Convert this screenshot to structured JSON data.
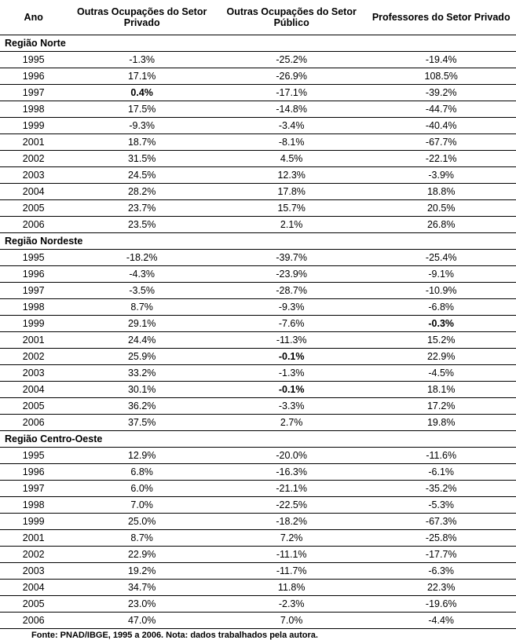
{
  "headers": {
    "ano": "Ano",
    "col1": "Outras Ocupações do Setor Privado",
    "col2": "Outras Ocupações do Setor Público",
    "col3": "Professores do Setor Privado"
  },
  "regions": [
    {
      "name": "Região Norte",
      "rows": [
        {
          "ano": "1995",
          "c1": "-1.3%",
          "c2": "-25.2%",
          "c3": "-19.4%"
        },
        {
          "ano": "1996",
          "c1": "17.1%",
          "c2": "-26.9%",
          "c3": "108.5%"
        },
        {
          "ano": "1997",
          "c1": "0.4%",
          "c1_bold": true,
          "c2": "-17.1%",
          "c3": "-39.2%"
        },
        {
          "ano": "1998",
          "c1": "17.5%",
          "c2": "-14.8%",
          "c3": "-44.7%"
        },
        {
          "ano": "1999",
          "c1": "-9.3%",
          "c2": "-3.4%",
          "c3": "-40.4%"
        },
        {
          "ano": "2001",
          "c1": "18.7%",
          "c2": "-8.1%",
          "c3": "-67.7%"
        },
        {
          "ano": "2002",
          "c1": "31.5%",
          "c2": "4.5%",
          "c3": "-22.1%"
        },
        {
          "ano": "2003",
          "c1": "24.5%",
          "c2": "12.3%",
          "c3": "-3.9%"
        },
        {
          "ano": "2004",
          "c1": "28.2%",
          "c2": "17.8%",
          "c3": "18.8%"
        },
        {
          "ano": "2005",
          "c1": "23.7%",
          "c2": "15.7%",
          "c3": "20.5%"
        },
        {
          "ano": "2006",
          "c1": "23.5%",
          "c2": "2.1%",
          "c3": "26.8%"
        }
      ]
    },
    {
      "name": "Região Nordeste",
      "rows": [
        {
          "ano": "1995",
          "c1": "-18.2%",
          "c2": "-39.7%",
          "c3": "-25.4%"
        },
        {
          "ano": "1996",
          "c1": "-4.3%",
          "c2": "-23.9%",
          "c3": "-9.1%"
        },
        {
          "ano": "1997",
          "c1": "-3.5%",
          "c2": "-28.7%",
          "c3": "-10.9%"
        },
        {
          "ano": "1998",
          "c1": "8.7%",
          "c2": "-9.3%",
          "c3": "-6.8%"
        },
        {
          "ano": "1999",
          "c1": "29.1%",
          "c2": "-7.6%",
          "c3": "-0.3%",
          "c3_bold": true
        },
        {
          "ano": "2001",
          "c1": "24.4%",
          "c2": "-11.3%",
          "c3": "15.2%"
        },
        {
          "ano": "2002",
          "c1": "25.9%",
          "c2": "-0.1%",
          "c2_bold": true,
          "c3": "22.9%"
        },
        {
          "ano": "2003",
          "c1": "33.2%",
          "c2": "-1.3%",
          "c3": "-4.5%"
        },
        {
          "ano": "2004",
          "c1": "30.1%",
          "c2": "-0.1%",
          "c2_bold": true,
          "c3": "18.1%"
        },
        {
          "ano": "2005",
          "c1": "36.2%",
          "c2": "-3.3%",
          "c3": "17.2%"
        },
        {
          "ano": "2006",
          "c1": "37.5%",
          "c2": "2.7%",
          "c3": "19.8%"
        }
      ]
    },
    {
      "name": "Região Centro-Oeste",
      "rows": [
        {
          "ano": "1995",
          "c1": "12.9%",
          "c2": "-20.0%",
          "c3": "-11.6%"
        },
        {
          "ano": "1996",
          "c1": "6.8%",
          "c2": "-16.3%",
          "c3": "-6.1%"
        },
        {
          "ano": "1997",
          "c1": "6.0%",
          "c2": "-21.1%",
          "c3": "-35.2%"
        },
        {
          "ano": "1998",
          "c1": "7.0%",
          "c2": "-22.5%",
          "c3": "-5.3%"
        },
        {
          "ano": "1999",
          "c1": "25.0%",
          "c2": "-18.2%",
          "c3": "-67.3%"
        },
        {
          "ano": "2001",
          "c1": "8.7%",
          "c2": "7.2%",
          "c3": "-25.8%"
        },
        {
          "ano": "2002",
          "c1": "22.9%",
          "c2": "-11.1%",
          "c3": "-17.7%"
        },
        {
          "ano": "2003",
          "c1": "19.2%",
          "c2": "-11.7%",
          "c3": "-6.3%"
        },
        {
          "ano": "2004",
          "c1": "34.7%",
          "c2": "11.8%",
          "c3": "22.3%"
        },
        {
          "ano": "2005",
          "c1": "23.0%",
          "c2": "-2.3%",
          "c3": "-19.6%"
        },
        {
          "ano": "2006",
          "c1": "47.0%",
          "c2": "7.0%",
          "c3": "-4.4%"
        }
      ]
    }
  ],
  "footnote": "Fonte: PNAD/IBGE, 1995 a 2006. Nota: dados trabalhados pela autora."
}
